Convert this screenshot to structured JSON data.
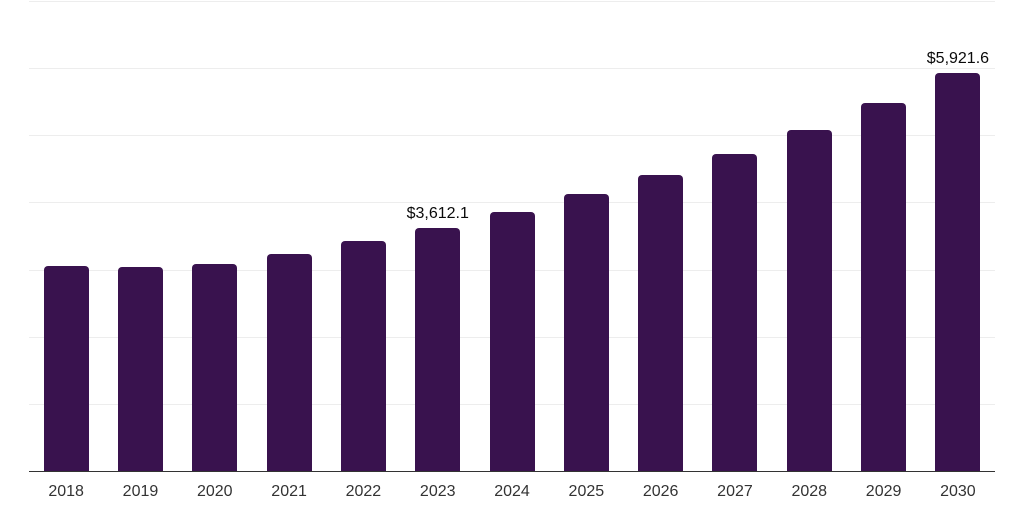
{
  "page": {
    "background_color": "#ffffff"
  },
  "colors": {
    "bar": "#39124E",
    "baseline": "#333333",
    "gridline": "#ededed",
    "tick_label": "#333333",
    "data_label": "#0a0a0a"
  },
  "chart_data": {
    "type": "bar",
    "title": "",
    "xlabel": "",
    "ylabel": "",
    "categories": [
      "2018",
      "2019",
      "2020",
      "2021",
      "2022",
      "2023",
      "2024",
      "2025",
      "2026",
      "2027",
      "2028",
      "2029",
      "2030"
    ],
    "values": [
      3050,
      3040,
      3090,
      3225,
      3425,
      3612.1,
      3855,
      4120,
      4405,
      4715,
      5080,
      5485,
      5921.6
    ],
    "data_labels": {
      "2023": "$3,612.1",
      "2030": "$5,921.6"
    },
    "ylim": [
      0,
      7000
    ],
    "gridline_step": 1000,
    "grid": "horizontal",
    "legend": "none",
    "y_axis_tick_labels": "none"
  }
}
